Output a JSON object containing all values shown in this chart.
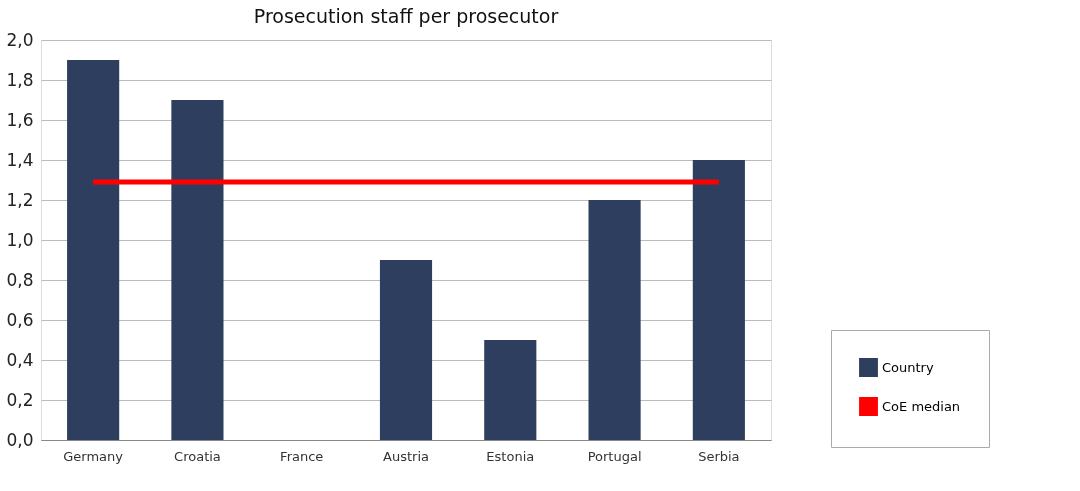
{
  "chart_data": {
    "type": "bar",
    "title": "Prosecution staff per prosecutor",
    "categories": [
      "Germany",
      "Croatia",
      "France",
      "Austria",
      "Estonia",
      "Portugal",
      "Serbia"
    ],
    "series": [
      {
        "name": "Country",
        "color": "#2e3e5e",
        "values": [
          1.9,
          1.7,
          0,
          0.9,
          0.5,
          1.2,
          1.4
        ]
      },
      {
        "name": "CoE median",
        "type": "line",
        "color": "#ff0000",
        "values": [
          1.29,
          1.29,
          1.29,
          1.29,
          1.29,
          1.29,
          1.29
        ]
      }
    ],
    "ylim": [
      0,
      2
    ],
    "yticks": [
      {
        "value": 0,
        "label": "0,0"
      },
      {
        "value": 0.2,
        "label": "0,2"
      },
      {
        "value": 0.4,
        "label": "0,4"
      },
      {
        "value": 0.6,
        "label": "0,6"
      },
      {
        "value": 0.8,
        "label": "0,8"
      },
      {
        "value": 1.0,
        "label": "1,0"
      },
      {
        "value": 1.2,
        "label": "1,2"
      },
      {
        "value": 1.4,
        "label": "1,4"
      },
      {
        "value": 1.6,
        "label": "1,6"
      },
      {
        "value": 1.8,
        "label": "1,8"
      },
      {
        "value": 2.0,
        "label": "2,0"
      }
    ],
    "grid": "y",
    "legend": "bottom right"
  }
}
